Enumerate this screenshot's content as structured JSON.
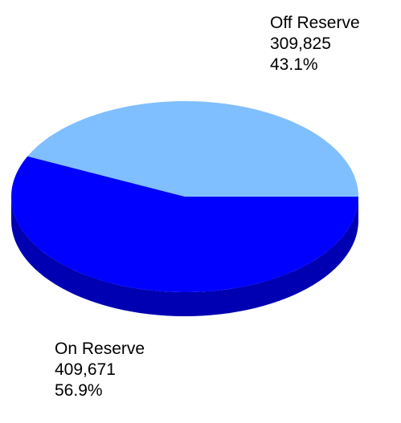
{
  "chart_data": {
    "type": "pie",
    "style": "3d",
    "title": "",
    "slices": [
      {
        "label": "Off Reserve",
        "value": 309825,
        "value_text": "309,825",
        "percent_text": "43.1%",
        "top_color": "#80bfff",
        "side_color": "#4d8fe0"
      },
      {
        "label": "On Reserve",
        "value": 409671,
        "value_text": "409,671",
        "percent_text": "56.9%",
        "top_color": "#0000ff",
        "side_color": "#0000b3"
      }
    ]
  }
}
